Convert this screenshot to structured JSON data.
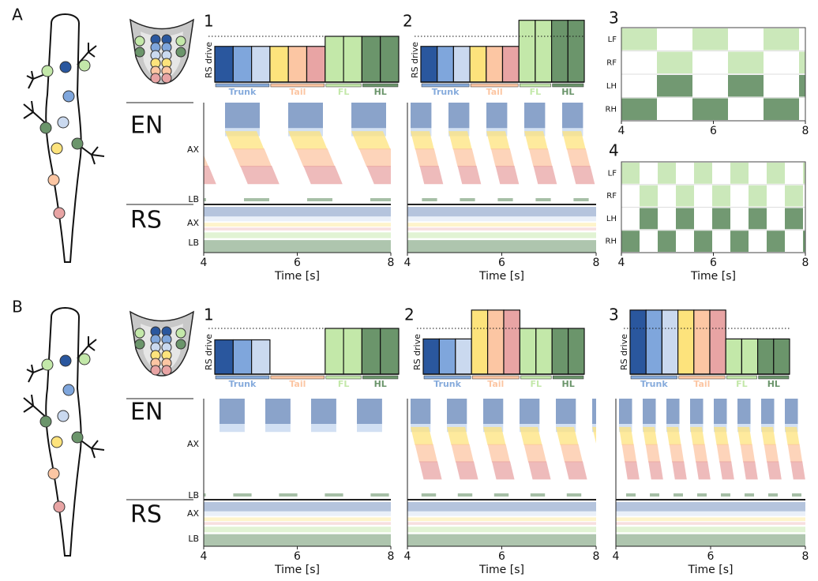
{
  "panels": [
    {
      "label": "A",
      "subpanels": [
        {
          "label": "1",
          "bar_chart": {
            "y_label": "RS drive",
            "groups": [
              "Trunk",
              "Tail",
              "FL",
              "HL"
            ],
            "values": [
              0.78,
              0.78,
              0.78,
              0.78,
              0.78,
              0.78,
              1,
              1,
              1,
              1
            ],
            "threshold": 1
          },
          "raster": {
            "type": "network",
            "sections": [
              "EN",
              "RS"
            ],
            "y_labels": [
              "AX",
              "LB",
              "AX",
              "LB"
            ],
            "xlim": [
              4,
              8
            ],
            "xticks": [
              4,
              6,
              8
            ],
            "x_label": "Time [s]"
          }
        },
        {
          "label": "2",
          "bar_chart": {
            "y_label": "RS drive",
            "groups": [
              "Trunk",
              "Tail",
              "FL",
              "HL"
            ],
            "values": [
              0.78,
              0.78,
              0.78,
              0.78,
              0.78,
              0.78,
              1.35,
              1.35,
              1.35,
              1.35
            ],
            "threshold": 1
          },
          "raster": {
            "type": "network",
            "xlim": [
              4,
              8
            ],
            "xticks": [
              4,
              6,
              8
            ],
            "x_label": "Time [s]"
          }
        },
        {
          "label": "3",
          "raster": {
            "type": "limb",
            "y_labels": [
              "LF",
              "RF",
              "LH",
              "RH"
            ],
            "xlim": [
              4,
              8
            ],
            "xticks": [
              4,
              6,
              8
            ]
          }
        },
        {
          "label": "4",
          "raster": {
            "type": "limb",
            "y_labels": [
              "LF",
              "RF",
              "LH",
              "RH"
            ],
            "xlim": [
              4,
              8
            ],
            "xticks": [
              4,
              6,
              8
            ],
            "x_label": "Time [s]"
          }
        }
      ]
    },
    {
      "label": "B",
      "subpanels": [
        {
          "label": "1",
          "bar_chart": {
            "y_label": "RS drive",
            "groups": [
              "Trunk",
              "Tail",
              "FL",
              "HL"
            ],
            "values": [
              0.75,
              0.75,
              0.75,
              0,
              0,
              0,
              1,
              1,
              1,
              1
            ],
            "threshold": 1
          },
          "raster": {
            "type": "network",
            "sections": [
              "EN",
              "RS"
            ],
            "y_labels": [
              "AX",
              "LB",
              "AX",
              "LB"
            ],
            "xlim": [
              4,
              8
            ],
            "xticks": [
              4,
              6,
              8
            ],
            "x_label": "Time [s]"
          }
        },
        {
          "label": "2",
          "bar_chart": {
            "y_label": "RS drive",
            "groups": [
              "Trunk",
              "Tail",
              "FL",
              "HL"
            ],
            "values": [
              0.77,
              0.77,
              0.77,
              1.4,
              1.4,
              1.4,
              1,
              1,
              1,
              1
            ],
            "threshold": 1
          },
          "raster": {
            "type": "network",
            "xlim": [
              4,
              8
            ],
            "xticks": [
              4,
              6,
              8
            ],
            "x_label": "Time [s]"
          }
        },
        {
          "label": "3",
          "bar_chart": {
            "y_label": "RS drive",
            "groups": [
              "Trunk",
              "Tail",
              "FL",
              "HL"
            ],
            "values": [
              1.4,
              1.4,
              1.4,
              1.4,
              1.4,
              1.4,
              0.77,
              0.77,
              0.77,
              0.77
            ],
            "threshold": 1
          },
          "raster": {
            "type": "network",
            "xlim": [
              4,
              8
            ],
            "xticks": [
              4,
              6,
              8
            ],
            "x_label": "Time [s]"
          }
        }
      ]
    }
  ],
  "bar_colors": [
    "#2a579e",
    "#7fa6dc",
    "#cad9ef",
    "#fde37c",
    "#fcc6a3",
    "#e8a4a4",
    "#c3e8a9",
    "#c3e8a9",
    "#6b956b",
    "#6b956b"
  ],
  "group_colors": [
    "#86abdc",
    "#fcc6a3",
    "#c3e8a9",
    "#6b956b"
  ]
}
